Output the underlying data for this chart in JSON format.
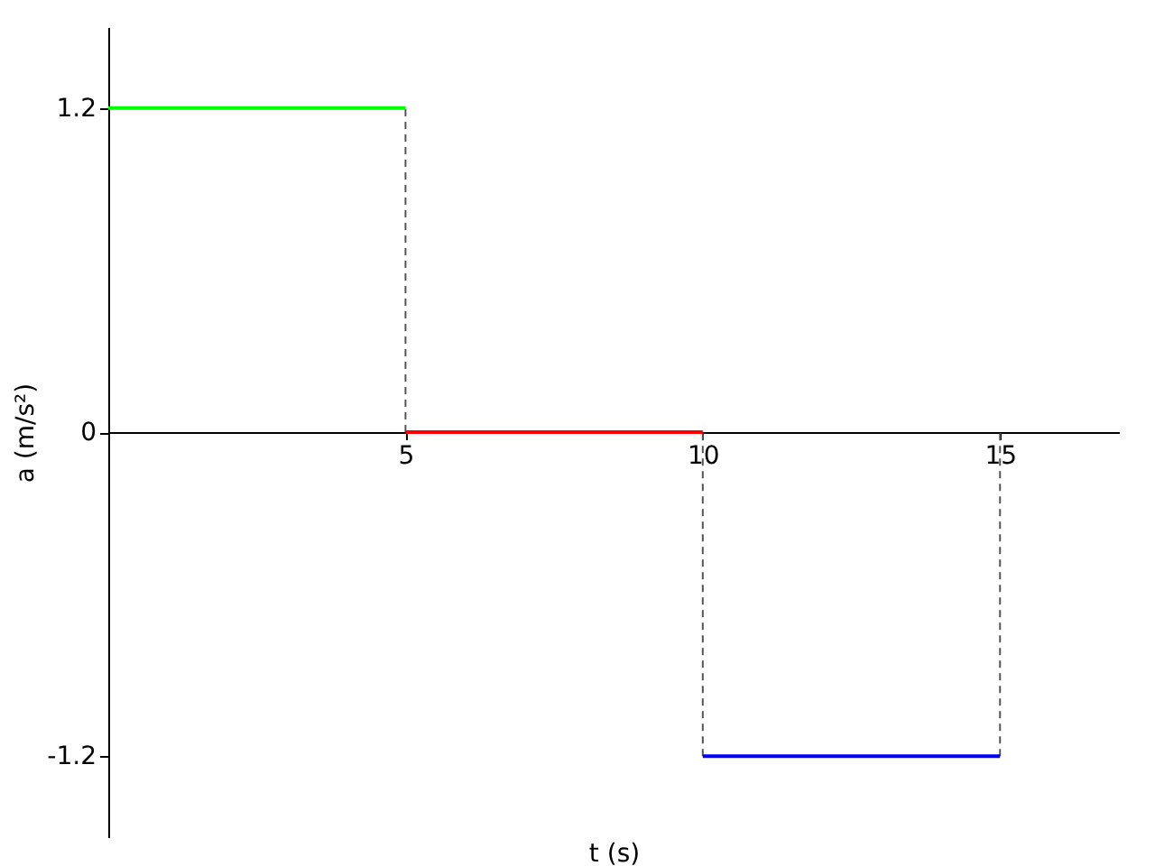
{
  "chart_data": {
    "type": "line",
    "xlabel": "t (s)",
    "ylabel": "a (m/s²)",
    "xlim": [
      0,
      17
    ],
    "ylim": [
      -1.5,
      1.5
    ],
    "xticks": [
      5,
      10,
      15
    ],
    "yticks": [
      -1.2,
      0,
      1.2
    ],
    "grid": false,
    "marker": "none",
    "series": [
      {
        "color": "#555555",
        "x": [
          5,
          5
        ],
        "values": [
          0,
          1.2
        ],
        "line_style": "dashed"
      },
      {
        "color": "#555555",
        "x": [
          10,
          10
        ],
        "values": [
          -1.2,
          0
        ],
        "line_style": "dashed"
      },
      {
        "color": "#555555",
        "x": [
          15,
          15
        ],
        "values": [
          -1.2,
          0
        ],
        "line_style": "dashed"
      },
      {
        "color": "#00ff00",
        "x": [
          0,
          5
        ],
        "values": [
          1.2,
          1.2
        ],
        "line_style": "solid"
      },
      {
        "color": "#ff0000",
        "x": [
          5,
          10
        ],
        "values": [
          0,
          0
        ],
        "line_style": "solid"
      },
      {
        "color": "#0000ff",
        "x": [
          10,
          15
        ],
        "values": [
          -1.2,
          -1.2
        ],
        "line_style": "solid"
      }
    ]
  }
}
